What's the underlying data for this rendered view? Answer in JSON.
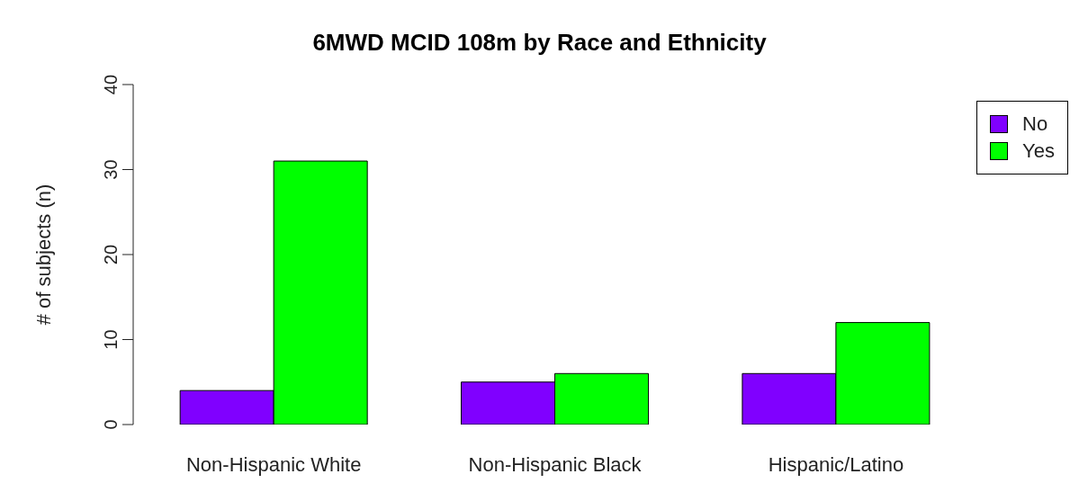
{
  "chart_data": {
    "type": "bar",
    "title": "6MWD MCID 108m by Race and Ethnicity",
    "ylabel": "# of subjects (n)",
    "categories": [
      "Non-Hispanic White",
      "Non-Hispanic Black",
      "Hispanic/Latino"
    ],
    "series": [
      {
        "name": "No",
        "color": "#8000ff",
        "values": [
          4,
          5,
          6
        ]
      },
      {
        "name": "Yes",
        "color": "#00ff00",
        "values": [
          31,
          6,
          12
        ]
      }
    ],
    "ylim": [
      0,
      40
    ],
    "yticks": [
      0,
      10,
      20,
      30,
      40
    ],
    "grid": false,
    "legend": "top right"
  }
}
